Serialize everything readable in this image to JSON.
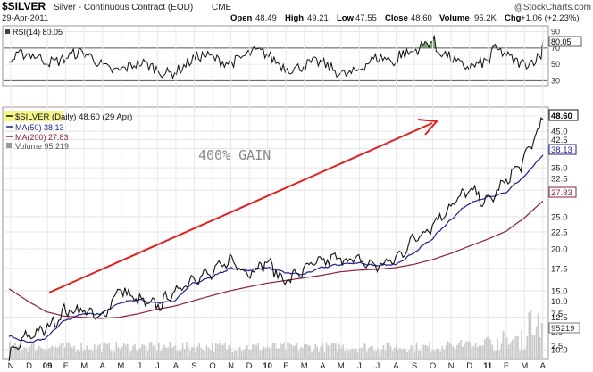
{
  "header": {
    "symbol": "$SILVER",
    "name": "Silver - Continuous Contract (EOD)",
    "exchange": "CME",
    "date": "29-Apr-2011",
    "watermark": "@StockCharts.com",
    "open_label": "Open",
    "open": "48.49",
    "high_label": "High",
    "high": "49.21",
    "low_label": "Low",
    "low": "47.55",
    "close_label": "Close",
    "close": "48.60",
    "volume_label": "Volume",
    "volume": "95.2K",
    "chg_label": "Chg",
    "chg": "+1.06 (+2.23%)"
  },
  "rsi_panel": {
    "label": "RSI(14) 80.05",
    "last_value_tag": "80.05",
    "ticks": [
      {
        "label": "90",
        "v": 90
      },
      {
        "label": "70",
        "v": 70
      },
      {
        "label": "50",
        "v": 50
      },
      {
        "label": "30",
        "v": 30
      }
    ]
  },
  "price_panel": {
    "legend_price": "$SILVER (Daily) 48.60 (29 Apr)",
    "legend_ma50": "MA(50) 38.13",
    "legend_ma200": "MA(200) 27.83",
    "legend_volume": "Volume 95,219",
    "annotation": "400% GAIN",
    "tags": {
      "price": "48.60",
      "ma50": "38.13",
      "ma200": "27.83",
      "volume": "95219"
    },
    "ticks": [
      "50.0",
      "45.0",
      "42.5",
      "40.0",
      "35.0",
      "32.5",
      "30.0",
      "25.0",
      "22.5",
      "20.0",
      "17.5",
      "15.0",
      "12.5",
      "10.0"
    ],
    "vol_ticks": [
      "10.0",
      "7.5",
      "5.0",
      "2.5"
    ]
  },
  "x_axis": {
    "labels": [
      "N",
      "D",
      "09",
      "F",
      "M",
      "A",
      "M",
      "J",
      "J",
      "A",
      "S",
      "O",
      "N",
      "D",
      "10",
      "F",
      "M",
      "A",
      "M",
      "J",
      "J",
      "A",
      "S",
      "O",
      "N",
      "D",
      "11",
      "F",
      "M",
      "A"
    ]
  },
  "colors": {
    "price": "#111111",
    "ma50": "#1f1f8c",
    "ma200": "#8c1f3a",
    "volume": "#c8c8c8",
    "arrow": "#e02020",
    "rsi_fill": "#6a9a6a",
    "highlight": "#f5f58a"
  },
  "chart_data": {
    "type": "line",
    "title": "$SILVER Silver - Continuous Contract (EOD) CME",
    "y_scale": "log",
    "ylim": [
      10.0,
      50.0
    ],
    "x": [
      "2008-11",
      "2008-12",
      "2009-01",
      "2009-02",
      "2009-03",
      "2009-04",
      "2009-05",
      "2009-06",
      "2009-07",
      "2009-08",
      "2009-09",
      "2009-10",
      "2009-11",
      "2009-12",
      "2010-01",
      "2010-02",
      "2010-03",
      "2010-04",
      "2010-05",
      "2010-06",
      "2010-07",
      "2010-08",
      "2010-09",
      "2010-10",
      "2010-11",
      "2010-12",
      "2011-01",
      "2011-02",
      "2011-03",
      "2011-04"
    ],
    "series": [
      {
        "name": "$SILVER (Daily)",
        "values": [
          9.5,
          11.0,
          11.5,
          13.0,
          13.2,
          12.3,
          15.2,
          14.0,
          13.5,
          14.8,
          16.5,
          16.8,
          18.6,
          17.0,
          18.3,
          16.0,
          17.3,
          18.4,
          18.8,
          18.4,
          17.8,
          18.6,
          21.5,
          23.6,
          27.0,
          30.0,
          27.5,
          32.0,
          37.0,
          48.6
        ]
      },
      {
        "name": "MA(50)",
        "values": [
          11.0,
          10.5,
          10.8,
          12.2,
          12.8,
          12.8,
          13.8,
          14.1,
          13.8,
          14.0,
          15.8,
          16.5,
          17.5,
          17.3,
          17.6,
          17.0,
          16.8,
          17.6,
          18.0,
          18.2,
          17.8,
          18.0,
          19.5,
          21.5,
          24.5,
          27.5,
          28.5,
          29.5,
          33.0,
          38.13
        ]
      },
      {
        "name": "MA(200)",
        "values": [
          15.2,
          14.0,
          13.0,
          12.6,
          12.5,
          12.4,
          12.5,
          12.8,
          13.2,
          13.5,
          14.0,
          14.5,
          15.0,
          15.4,
          15.8,
          16.1,
          16.4,
          16.7,
          17.1,
          17.3,
          17.4,
          17.6,
          18.0,
          18.6,
          19.4,
          20.4,
          21.4,
          22.6,
          24.8,
          27.83
        ]
      }
    ],
    "rsi": {
      "name": "RSI(14)",
      "last": 80.05,
      "ylim": [
        25,
        95
      ],
      "levels": [
        70,
        30
      ]
    },
    "annotations": [
      {
        "text": "400% GAIN"
      }
    ]
  }
}
